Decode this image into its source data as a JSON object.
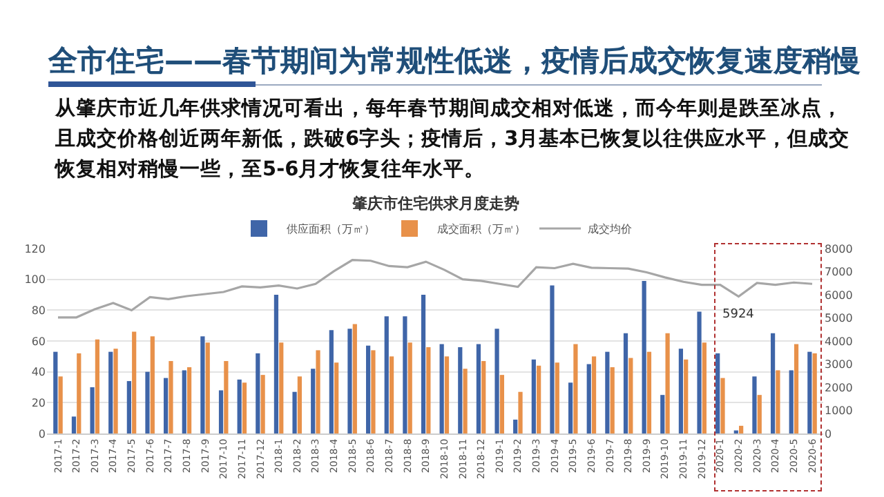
{
  "chart_data": {
    "type": "bar",
    "title": "全市住宅——春节期间为常规性低迷，疫情后成交恢复速度稍慢",
    "subtitle": "从肇庆市近几年供求情况可看出，每年春节期间成交相对低迷，而今年则是跌至冰点，且成交价格创近两年新低，跌破6字头；疫情后，3月基本已恢复以往供应水平，但成交恢复相对稍慢一些，至5-6月才恢复往年水平。",
    "annotations": [
      "肇庆市住宅供求月度走势",
      "5924"
    ],
    "categories": [
      "2017-1",
      "2017-2",
      "2017-3",
      "2017-4",
      "2017-5",
      "2017-6",
      "2017-7",
      "2017-8",
      "2017-9",
      "2017-10",
      "2017-11",
      "2017-12",
      "2018-1",
      "2018-2",
      "2018-3",
      "2018-4",
      "2018-5",
      "2018-6",
      "2018-7",
      "2018-8",
      "2018-9",
      "2018-10",
      "2018-11",
      "2018-12",
      "2019-1",
      "2019-2",
      "2019-3",
      "2019-4",
      "2019-5",
      "2019-6",
      "2019-7",
      "2019-8",
      "2019-9",
      "2019-10",
      "2019-11",
      "2019-12",
      "2020-1",
      "2020-2",
      "2020-3",
      "2020-4",
      "2020-5",
      "2020-6"
    ],
    "series": [
      {
        "name": "供应面积（万㎡）",
        "color": "#3f65a8",
        "values": [
          53,
          11,
          30,
          53,
          34,
          40,
          36,
          41,
          63,
          28,
          35,
          52,
          90,
          27,
          42,
          67,
          68,
          57,
          76,
          76,
          90,
          58,
          56,
          58,
          68,
          9,
          48,
          96,
          33,
          45,
          53,
          65,
          99,
          25,
          55,
          79,
          52,
          2,
          37,
          65,
          41,
          53
        ]
      },
      {
        "name": "成交面积（万㎡）",
        "color": "#e8914a",
        "values": [
          37,
          52,
          61,
          55,
          66,
          63,
          47,
          43,
          59,
          47,
          33,
          38,
          59,
          37,
          54,
          46,
          71,
          54,
          50,
          59,
          56,
          50,
          42,
          47,
          38,
          27,
          44,
          46,
          58,
          50,
          43,
          49,
          53,
          65,
          48,
          59,
          36,
          5,
          25,
          41,
          58,
          52
        ]
      },
      {
        "name": "成交均价",
        "type": "line",
        "axis": "y2",
        "color": "#a6a6a6",
        "values": [
          5020,
          5020,
          5370,
          5640,
          5330,
          5900,
          5810,
          5940,
          6030,
          6120,
          6360,
          6320,
          6400,
          6270,
          6470,
          7020,
          7500,
          7470,
          7240,
          7190,
          7430,
          7080,
          6670,
          6600,
          6470,
          6340,
          7190,
          7150,
          7340,
          7170,
          7150,
          7130,
          6970,
          6750,
          6560,
          6430,
          6430,
          5924,
          6510,
          6430,
          6530,
          6470
        ]
      }
    ],
    "ylim": [
      0,
      120
    ],
    "yticks": [
      0,
      20,
      40,
      60,
      80,
      100,
      120
    ],
    "y2lim": [
      0,
      8000
    ],
    "y2ticks": [
      0,
      1000,
      2000,
      3000,
      4000,
      5000,
      6000,
      7000,
      8000
    ],
    "grid": "y",
    "legend": "top",
    "marker": "none",
    "line_style": "solid"
  }
}
